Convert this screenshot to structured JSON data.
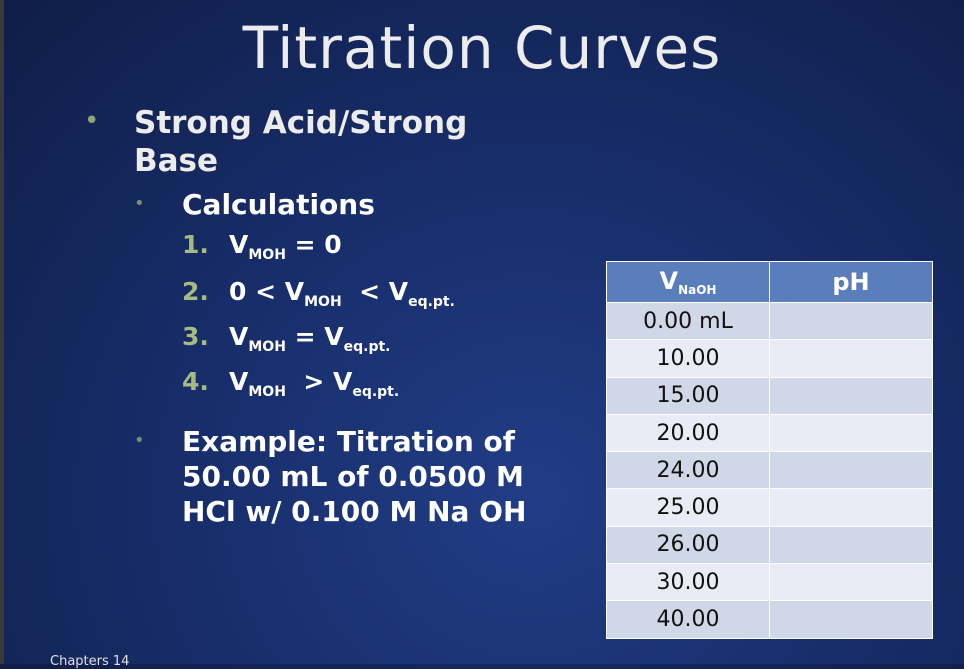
{
  "title": "Titration Curves",
  "bullet_char": "•",
  "bullet1": "Strong Acid/Strong Base",
  "bullet2": "Calculations",
  "items": [
    {
      "num": "1.",
      "pre": "V",
      "sub1": "MOH",
      "mid": " = 0",
      "sub2": ""
    },
    {
      "num": "2.",
      "pre": "0 < V",
      "sub1": "MOH",
      "mid": "  < V",
      "sub2": "eq.pt."
    },
    {
      "num": "3.",
      "pre": "V",
      "sub1": "MOH",
      "mid": " = V",
      "sub2": "eq.pt."
    },
    {
      "num": "4.",
      "pre": "V",
      "sub1": "MOH",
      "mid": "  > V",
      "sub2": "eq.pt."
    }
  ],
  "example": "Example: Titration of 50.00 mL of 0.0500 M HCl w/ 0.100 M Na OH",
  "table": {
    "col1_main": "V",
    "col1_sub": "NaOH",
    "col2": "pH",
    "rows": [
      "0.00 mL",
      "10.00",
      "15.00",
      "20.00",
      "24.00",
      "25.00",
      "26.00",
      "30.00",
      "40.00"
    ]
  },
  "footer": "Chapters 14"
}
